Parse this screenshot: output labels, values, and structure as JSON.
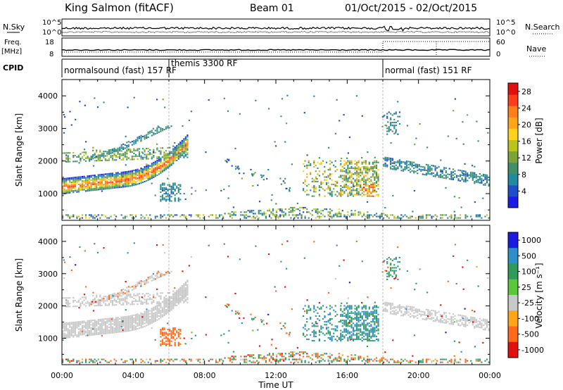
{
  "header": {
    "station": "King Salmon (fitACF)",
    "beam": "Beam 01",
    "dates": "01/Oct/2015 - 02/Oct/2015"
  },
  "strips": {
    "nsky": {
      "label": "N.Sky",
      "tick_top": "10^5",
      "tick_bottom": "10^0"
    },
    "nsearch": {
      "label": "N.Search",
      "tick_top": "10^5",
      "tick_bottom": "10^0"
    },
    "freq": {
      "label": "Freq.",
      "unit": "[MHz]",
      "tick_top": "18",
      "tick_bottom": "8"
    },
    "nave": {
      "label": "Nave",
      "tick_top": "60",
      "tick_bottom": "0"
    },
    "cpid": {
      "label": "CPID",
      "segments": [
        {
          "name": "normalsound (fast) 157 RF",
          "start_h": 0,
          "end_h": 6.0
        },
        {
          "name": "themis 3300 RF",
          "start_h": 6.0,
          "end_h": 18.0
        },
        {
          "name": "normal (fast) 151 RF",
          "start_h": 18.0,
          "end_h": 24.0
        }
      ]
    }
  },
  "chart_data": [
    {
      "type": "heatmap",
      "quantity": "power",
      "ylabel": "Slant Range [km]",
      "ylim": [
        180,
        4500
      ],
      "yticks": [
        "1000",
        "2000",
        "3000",
        "4000"
      ],
      "colorbar_label": "Power [dB]",
      "colorbar_ticks": [
        "4",
        "8",
        "12",
        "16",
        "20",
        "24",
        "28"
      ],
      "colorbar_range": [
        0,
        30
      ],
      "colorbar_colors": [
        "#1c1ce8",
        "#1f4fc8",
        "#1f8aa0",
        "#3f8f6a",
        "#7aa33a",
        "#b9c41f",
        "#ffd21f",
        "#ffa51a",
        "#ff7f1a",
        "#ff3d1a",
        "#e0100f"
      ],
      "echo_regions": [
        {
          "name": "main near-range band",
          "time_h": [
            0.0,
            7.0
          ],
          "range_km": [
            1000,
            2300
          ],
          "level": 22
        },
        {
          "name": "upper diffuse band",
          "time_h": [
            0.5,
            6.5
          ],
          "range_km": [
            1900,
            3200
          ],
          "level": 9
        },
        {
          "name": "midday patch",
          "time_h": [
            13.5,
            17.8
          ],
          "range_km": [
            900,
            2000
          ],
          "level": 12
        },
        {
          "name": "evening band",
          "time_h": [
            18.0,
            24.0
          ],
          "range_km": [
            1200,
            2000
          ],
          "level": 8
        },
        {
          "name": "near-range ground scatter",
          "time_h": [
            0.0,
            24.0
          ],
          "range_km": [
            250,
            500
          ],
          "level": 10
        }
      ]
    },
    {
      "type": "heatmap",
      "quantity": "velocity",
      "xlabel": "Time UT",
      "ylabel": "Slant Range [km]",
      "ylim": [
        180,
        4500
      ],
      "xticks": [
        "00:00",
        "04:00",
        "08:00",
        "12:00",
        "16:00",
        "20:00",
        "00:00"
      ],
      "yticks": [
        "1000",
        "2000",
        "3000",
        "4000"
      ],
      "colorbar_label": "Velocity [m s⁻¹]",
      "colorbar_ticks": [
        "1000",
        "500",
        "100",
        "25",
        "-25",
        "-100",
        "-500",
        "-1000"
      ],
      "colorbar_colors": [
        "#1a1ae0",
        "#2f8fc8",
        "#2f9a5a",
        "#5ac83a",
        "#c8c8c8",
        "#ffa51a",
        "#ff6a1a",
        "#e0100f"
      ],
      "echo_regions": [
        {
          "name": "ground scatter band",
          "time_h": [
            0.0,
            7.0
          ],
          "range_km": [
            1000,
            2300
          ],
          "velocity": 0
        },
        {
          "name": "midday patch",
          "time_h": [
            13.5,
            17.8
          ],
          "range_km": [
            900,
            2000
          ],
          "velocity": 300
        },
        {
          "name": "evening ground scatter",
          "time_h": [
            18.0,
            24.0
          ],
          "range_km": [
            1200,
            2000
          ],
          "velocity": 0
        },
        {
          "name": "morning negative-velocity patch",
          "time_h": [
            5.5,
            6.5
          ],
          "range_km": [
            700,
            1300
          ],
          "velocity": -120
        }
      ]
    }
  ]
}
